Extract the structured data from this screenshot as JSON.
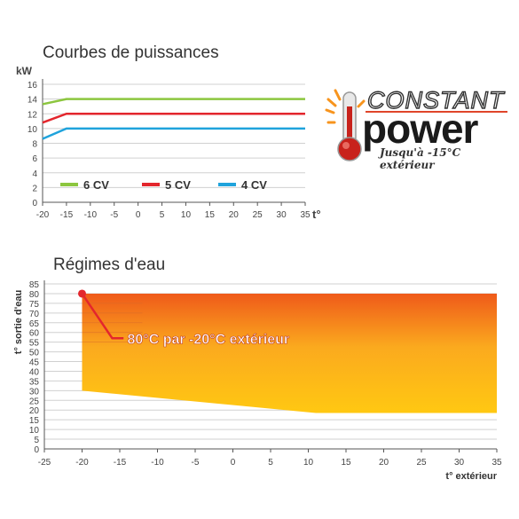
{
  "titles": {
    "power": "Courbes de puissances",
    "water": "Régimes d'eau"
  },
  "logo": {
    "constant": "CONSTANT",
    "power": "power",
    "subtitle": "Jusqu'à -15°C extérieur"
  },
  "annotation": "80°C par -20°C extérieur",
  "colors": {
    "green": "#8cc63f",
    "red": "#e3262d",
    "blue": "#1fa3dc",
    "grid": "#d0d0d0",
    "axis": "#555555",
    "area_top": "#ef5a1a",
    "area_bottom": "#ffc812"
  },
  "chart_data": [
    {
      "type": "line",
      "title": "Courbes de puissances",
      "ylabel": "kW",
      "xlabel": "t°",
      "xlim": [
        -20,
        35
      ],
      "ylim": [
        0,
        16
      ],
      "xticks": [
        -20,
        -15,
        -10,
        -5,
        0,
        5,
        10,
        15,
        20,
        25,
        30,
        35
      ],
      "yticks": [
        0,
        2,
        4,
        6,
        8,
        10,
        12,
        14,
        16
      ],
      "grid": true,
      "legend": "bottom-left",
      "series": [
        {
          "name": "6 CV",
          "color": "#8cc63f",
          "x": [
            -20,
            -15,
            35
          ],
          "y": [
            13.3,
            14.0,
            14.0
          ]
        },
        {
          "name": "5 CV",
          "color": "#e3262d",
          "x": [
            -20,
            -15,
            35
          ],
          "y": [
            10.8,
            12.0,
            12.0
          ]
        },
        {
          "name": "4 CV",
          "color": "#1fa3dc",
          "x": [
            -20,
            -15,
            35
          ],
          "y": [
            8.6,
            10.0,
            10.0
          ]
        }
      ]
    },
    {
      "type": "area",
      "title": "Régimes d'eau",
      "ylabel": "t° sortie d'eau",
      "xlabel": "t° extérieur",
      "xlim": [
        -25,
        35
      ],
      "ylim": [
        0,
        85
      ],
      "xticks": [
        -25,
        -20,
        -15,
        -10,
        -5,
        0,
        5,
        10,
        15,
        20,
        25,
        30,
        35
      ],
      "yticks": [
        0,
        5,
        10,
        15,
        20,
        25,
        30,
        35,
        40,
        45,
        50,
        55,
        60,
        65,
        70,
        75,
        80,
        85
      ],
      "grid": true,
      "upper": {
        "x": [
          -20,
          35
        ],
        "y": [
          80,
          80
        ]
      },
      "lower": {
        "x": [
          -20,
          11,
          35
        ],
        "y": [
          30,
          18.5,
          18.5
        ]
      },
      "marker": {
        "x": -20,
        "y": 80,
        "label": "80°C par -20°C extérieur"
      }
    }
  ]
}
